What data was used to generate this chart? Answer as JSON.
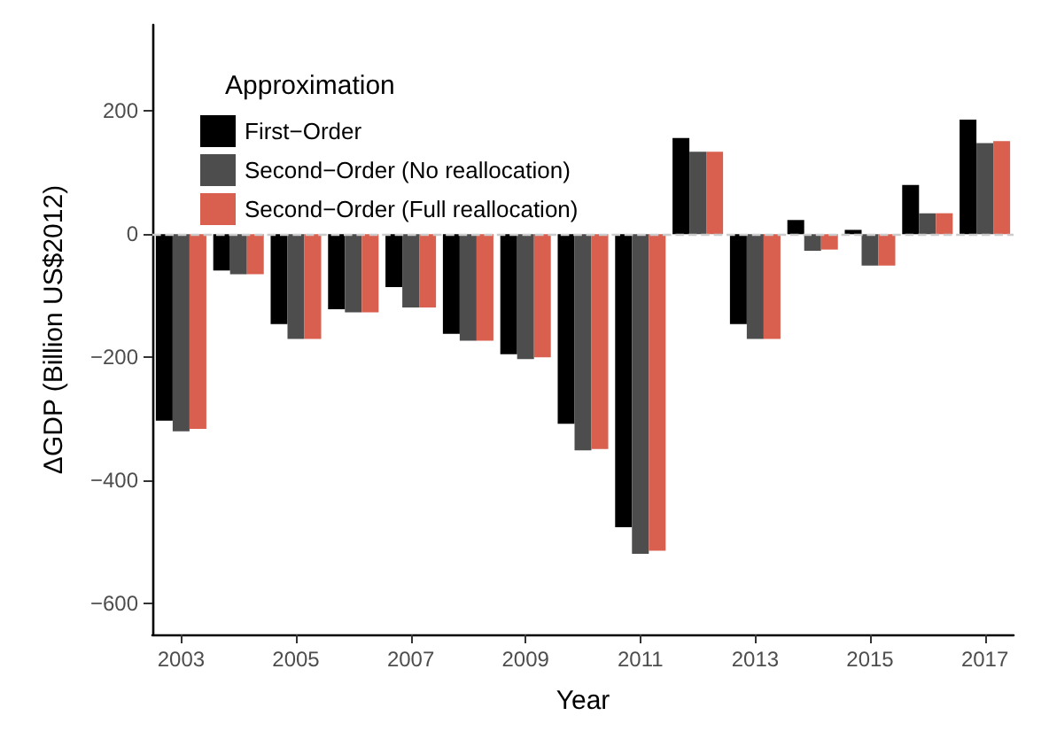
{
  "chart_data": {
    "type": "bar",
    "xlabel": "Year",
    "ylabel": "ΔGDP (Billion US$2012)",
    "legend_title": "Approximation",
    "legend": "top left",
    "grid": false,
    "categories": [
      "2003",
      null,
      "2005",
      null,
      "2007",
      null,
      "2009",
      null,
      "2011",
      null,
      "2013",
      null,
      "2015",
      null,
      "2017"
    ],
    "series": [
      {
        "name": "First−Order",
        "color": "#000000",
        "values": [
          -303,
          -59,
          -146,
          -122,
          -86,
          -162,
          -195,
          -308,
          -476,
          156,
          -146,
          23,
          7,
          80,
          186
        ]
      },
      {
        "name": "Second−Order (No reallocation)",
        "color": "#4d4d4d",
        "values": [
          -320,
          -65,
          -170,
          -127,
          -119,
          -173,
          -203,
          -351,
          -519,
          134,
          -170,
          -27,
          -51,
          34,
          148
        ]
      },
      {
        "name": "Second−Order (Full reallocation)",
        "color": "#d95f4f",
        "values": [
          -316,
          -65,
          -170,
          -127,
          -119,
          -173,
          -200,
          -349,
          -514,
          134,
          -170,
          -25,
          -51,
          34,
          151
        ]
      }
    ],
    "ylim": [
      -650,
      340
    ],
    "yticks": [
      {
        "value": -600,
        "label": "−600"
      },
      {
        "value": -400,
        "label": "−400"
      },
      {
        "value": -200,
        "label": "−200"
      },
      0,
      200
    ],
    "ref_lines": [
      {
        "axis": "y",
        "value": 0,
        "color": "#cccccc",
        "line_style": "dashed"
      }
    ]
  }
}
